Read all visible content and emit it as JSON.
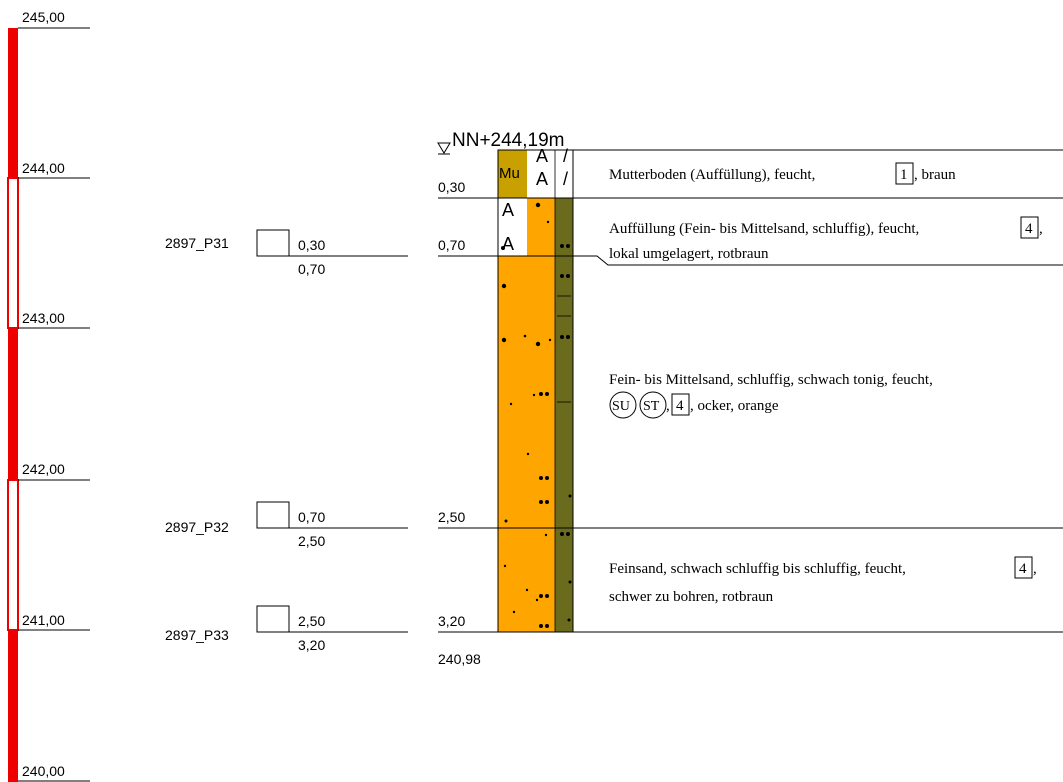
{
  "scale": {
    "labels": [
      "245,00",
      "244,00",
      "243,00",
      "242,00",
      "241,00",
      "240,00"
    ],
    "bar_color": "#ee0000"
  },
  "header": {
    "elevation_label": "NN+244,19m"
  },
  "samples": [
    {
      "name": "2897_P31",
      "top": "0,30",
      "bottom": "0,70"
    },
    {
      "name": "2897_P32",
      "top": "0,70",
      "bottom": "2,50"
    },
    {
      "name": "2897_P33",
      "top": "2,50",
      "bottom": "3,20"
    }
  ],
  "depths": {
    "d1": "0,30",
    "d2": "0,70",
    "d3": "2,50",
    "d4": "3,20",
    "final_elevation": "240,98"
  },
  "layers": [
    {
      "symbol": "Mu",
      "color": "#c8a000",
      "line1_pre": "Mutterboden (Auffüllung), feucht,",
      "box": "1",
      "line1_post": ", braun"
    },
    {
      "color": "#ffa500",
      "line1_pre": "Auffüllung (Fein- bis Mittelsand, schluffig), feucht,",
      "box": "4",
      "line1_post": ",",
      "line2": "lokal umgelagert, rotbraun"
    },
    {
      "color": "#ffa500",
      "line1": "Fein- bis Mittelsand, schluffig, schwach tonig, feucht,",
      "circle1": "SU",
      "circle2": "ST",
      "box": "4",
      "line2_post": ", ocker, orange"
    },
    {
      "color": "#ffa500",
      "line1_pre": "Feinsand, schwach schluffig bis schluffig, feucht,",
      "box": "4",
      "line1_post": ",",
      "line2": "schwer zu bohren, rotbraun"
    }
  ],
  "colors": {
    "side_band": "#6b6b1e",
    "sand": "#ffa500",
    "topsoil": "#c8a000"
  }
}
